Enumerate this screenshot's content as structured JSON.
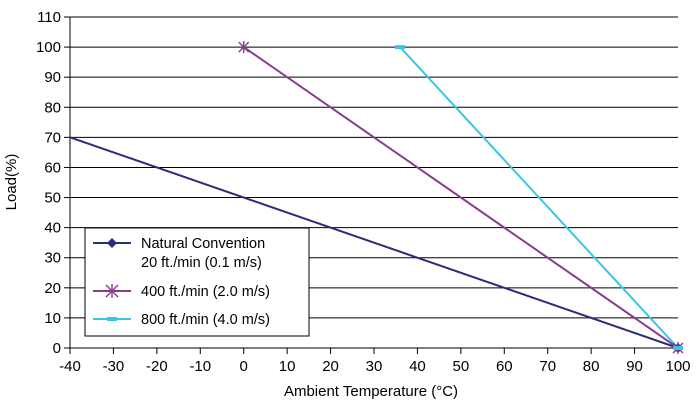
{
  "chart_data": {
    "type": "line",
    "xlabel": "Ambient Temperature (°C)",
    "ylabel": "Load(%)",
    "xlim": [
      -40,
      100
    ],
    "ylim": [
      0,
      110
    ],
    "x_ticks": [
      "-40",
      "-30",
      "-20",
      "-10",
      "0",
      "10",
      "20",
      "30",
      "40",
      "50",
      "60",
      "70",
      "80",
      "90",
      "100"
    ],
    "y_ticks": [
      "0",
      "10",
      "20",
      "30",
      "40",
      "50",
      "60",
      "70",
      "80",
      "90",
      "100",
      "110"
    ],
    "grid": "horizontal",
    "legend_position": "bottom-left",
    "series": [
      {
        "name": "Natural Convention",
        "name_line2": "20 ft./min (0.1 m/s)",
        "color": "#2b2d7c",
        "marker": "diamond",
        "points": [
          [
            -40,
            70
          ],
          [
            100,
            0
          ]
        ]
      },
      {
        "name": "400 ft./min (2.0 m/s)",
        "color": "#8b3a8f",
        "marker": "asterisk",
        "points": [
          [
            0,
            100
          ],
          [
            100,
            0
          ]
        ]
      },
      {
        "name": "800 ft./min (4.0 m/s)",
        "color": "#39c6e6",
        "marker": "dash",
        "points": [
          [
            36,
            100
          ],
          [
            100,
            0
          ]
        ]
      }
    ]
  }
}
